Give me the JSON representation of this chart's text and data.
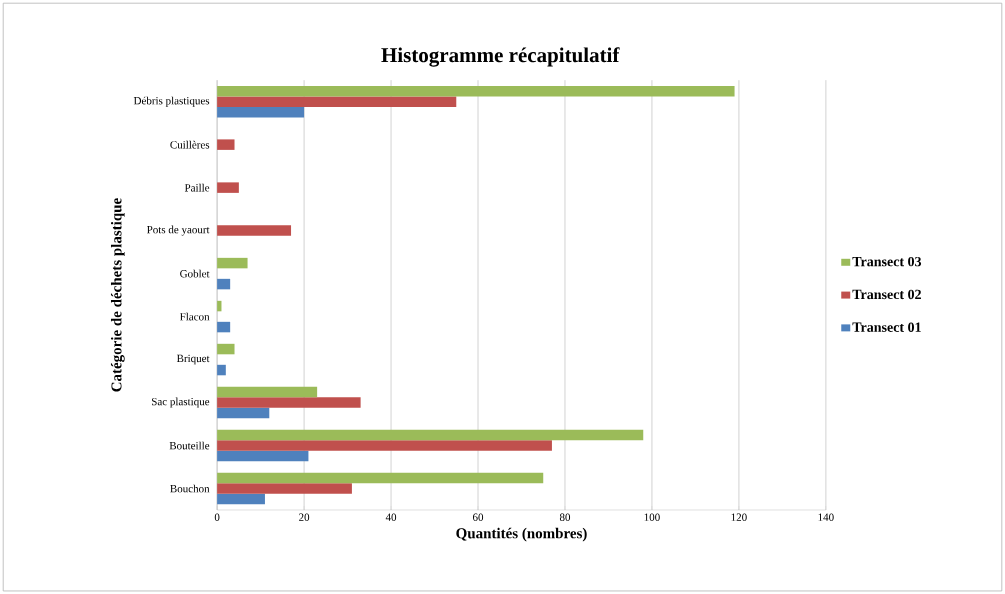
{
  "chart_data": {
    "type": "bar",
    "orientation": "horizontal",
    "title": "Histogramme récapitulatif",
    "xlabel": "Quantités (nombres)",
    "ylabel": "Catégorie de déchets plastique",
    "categories": [
      "Débris plastiques",
      "Cuillères",
      "Paille",
      "Pots de yaourt",
      "Goblet",
      "Flacon",
      "Briquet",
      "Sac plastique",
      "Bouteille",
      "Bouchon"
    ],
    "series": [
      {
        "name": "Transect 01",
        "color": "#4f81bd",
        "values": [
          20,
          null,
          null,
          null,
          3,
          3,
          2,
          12,
          21,
          11
        ]
      },
      {
        "name": "Transect 02",
        "color": "#c0504d",
        "values": [
          55,
          4,
          5,
          17,
          null,
          null,
          null,
          33,
          77,
          31
        ]
      },
      {
        "name": "Transect 03",
        "color": "#9bbb59",
        "values": [
          119,
          null,
          null,
          null,
          7,
          1,
          4,
          23,
          98,
          75
        ]
      }
    ],
    "xlim": [
      0,
      140
    ],
    "xticks": [
      0,
      20,
      40,
      60,
      80,
      100,
      120,
      140
    ],
    "grid": "x",
    "legend": "right"
  }
}
